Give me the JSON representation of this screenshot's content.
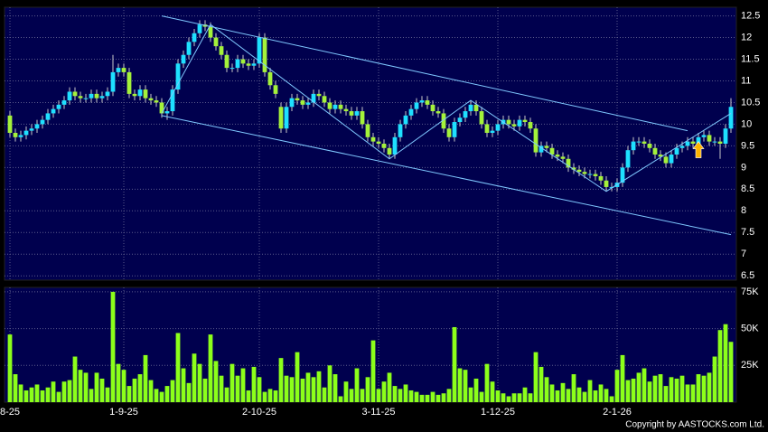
{
  "chart_data": [
    {
      "type": "candlestick",
      "up_color": "#1ee0ff",
      "down_color": "#a4f23a",
      "background": "#00004e",
      "grid": true,
      "xlim": [
        -1,
        134
      ],
      "xticks": [
        {
          "value": 0,
          "label": "8-25"
        },
        {
          "value": 21,
          "label": "1-9-25"
        },
        {
          "value": 46,
          "label": "2-10-25"
        },
        {
          "value": 68,
          "label": "3-11-25"
        },
        {
          "value": 90,
          "label": "1-12-25"
        },
        {
          "value": 112,
          "label": "2-1-26"
        }
      ],
      "ylim": [
        6.4,
        12.7
      ],
      "yticks": [
        6.5,
        7,
        7.5,
        8,
        8.5,
        9,
        9.5,
        10,
        10.5,
        11,
        11.5,
        12,
        12.5
      ],
      "open": [
        10.2,
        9.8,
        9.7,
        9.75,
        9.85,
        9.9,
        10.0,
        10.1,
        10.25,
        10.35,
        10.45,
        10.55,
        10.75,
        10.65,
        10.6,
        10.6,
        10.7,
        10.6,
        10.65,
        10.75,
        11.2,
        11.3,
        11.2,
        10.7,
        10.65,
        10.8,
        10.6,
        10.55,
        10.5,
        10.25,
        10.3,
        10.8,
        11.4,
        11.6,
        11.9,
        12.1,
        12.3,
        12.25,
        12.0,
        11.8,
        11.6,
        11.3,
        11.3,
        11.5,
        11.4,
        11.35,
        11.4,
        12.0,
        11.2,
        10.9,
        10.4,
        9.9,
        10.4,
        10.6,
        10.55,
        10.45,
        10.5,
        10.7,
        10.65,
        10.5,
        10.35,
        10.45,
        10.35,
        10.3,
        10.2,
        10.3,
        10.0,
        9.7,
        9.6,
        9.55,
        9.45,
        9.3,
        9.7,
        10.0,
        10.2,
        10.35,
        10.5,
        10.55,
        10.45,
        10.3,
        10.25,
        9.9,
        9.7,
        10.05,
        10.15,
        10.3,
        10.45,
        10.3,
        10.0,
        9.8,
        9.85,
        10.0,
        10.1,
        10.0,
        9.95,
        10.1,
        10.05,
        9.9,
        9.35,
        9.5,
        9.45,
        9.3,
        9.25,
        9.2,
        9.0,
        8.95,
        8.9,
        8.85,
        8.85,
        8.8,
        8.7,
        8.55,
        8.55,
        8.65,
        9.0,
        9.4,
        9.6,
        9.6,
        9.55,
        9.45,
        9.3,
        9.25,
        9.1,
        9.3,
        9.45,
        9.5,
        9.6,
        9.55,
        9.7,
        9.75,
        9.6,
        9.6,
        9.55,
        9.9
      ],
      "high": [
        10.3,
        9.9,
        9.85,
        9.95,
        10.0,
        10.1,
        10.2,
        10.35,
        10.45,
        10.55,
        10.65,
        10.85,
        10.85,
        10.75,
        10.7,
        10.8,
        10.8,
        10.75,
        10.85,
        11.6,
        11.4,
        11.4,
        11.3,
        10.8,
        10.9,
        10.9,
        10.7,
        10.65,
        10.6,
        10.4,
        10.9,
        11.5,
        11.7,
        12.0,
        12.2,
        12.4,
        12.4,
        12.35,
        12.1,
        11.9,
        11.7,
        11.4,
        11.6,
        11.6,
        11.5,
        11.5,
        12.1,
        12.1,
        11.3,
        11.0,
        10.5,
        10.5,
        10.7,
        10.7,
        10.65,
        10.6,
        10.8,
        10.8,
        10.75,
        10.6,
        10.55,
        10.55,
        10.45,
        10.4,
        10.4,
        10.4,
        10.1,
        9.8,
        9.7,
        9.65,
        9.55,
        9.8,
        10.1,
        10.3,
        10.45,
        10.6,
        10.65,
        10.65,
        10.55,
        10.4,
        10.35,
        10.0,
        10.15,
        10.25,
        10.4,
        10.55,
        10.55,
        10.4,
        10.1,
        9.95,
        10.1,
        10.2,
        10.2,
        10.1,
        10.2,
        10.2,
        10.15,
        10.0,
        9.6,
        9.6,
        9.55,
        9.4,
        9.35,
        9.3,
        9.1,
        9.05,
        9.0,
        8.95,
        8.95,
        8.9,
        8.8,
        8.65,
        8.75,
        9.1,
        9.5,
        9.7,
        9.7,
        9.7,
        9.65,
        9.55,
        9.4,
        9.35,
        9.4,
        9.55,
        9.6,
        9.7,
        9.7,
        9.8,
        9.85,
        9.85,
        9.7,
        9.7,
        10.0,
        10.6
      ],
      "low": [
        9.7,
        9.6,
        9.6,
        9.65,
        9.75,
        9.8,
        9.9,
        10.0,
        10.15,
        10.25,
        10.35,
        10.45,
        10.55,
        10.5,
        10.5,
        10.5,
        10.5,
        10.5,
        10.55,
        10.65,
        11.1,
        11.1,
        10.6,
        10.55,
        10.55,
        10.5,
        10.45,
        10.4,
        10.15,
        10.1,
        10.2,
        10.7,
        11.3,
        11.5,
        11.8,
        12.0,
        12.15,
        11.9,
        11.7,
        11.5,
        11.2,
        11.2,
        11.2,
        11.3,
        11.25,
        11.25,
        11.3,
        11.1,
        10.8,
        10.6,
        9.8,
        9.8,
        10.3,
        10.45,
        10.35,
        10.35,
        10.4,
        10.55,
        10.4,
        10.25,
        10.25,
        10.25,
        10.2,
        10.1,
        10.1,
        9.9,
        9.6,
        9.5,
        9.45,
        9.35,
        9.2,
        9.2,
        9.6,
        9.9,
        10.1,
        10.25,
        10.4,
        10.35,
        10.2,
        10.15,
        9.8,
        9.6,
        9.6,
        9.95,
        10.05,
        10.2,
        10.2,
        9.9,
        9.7,
        9.7,
        9.75,
        9.9,
        9.9,
        9.85,
        9.85,
        9.95,
        9.8,
        9.25,
        9.25,
        9.35,
        9.2,
        9.15,
        9.1,
        8.9,
        8.85,
        8.8,
        8.75,
        8.75,
        8.7,
        8.6,
        8.45,
        8.45,
        8.45,
        8.55,
        8.9,
        9.3,
        9.5,
        9.45,
        9.35,
        9.2,
        9.15,
        9.0,
        9.0,
        9.2,
        9.35,
        9.4,
        9.45,
        9.45,
        9.6,
        9.5,
        9.5,
        9.2,
        9.45,
        9.8
      ],
      "close": [
        9.8,
        9.7,
        9.75,
        9.85,
        9.9,
        10.0,
        10.1,
        10.25,
        10.35,
        10.45,
        10.55,
        10.75,
        10.65,
        10.6,
        10.6,
        10.7,
        10.6,
        10.65,
        10.75,
        11.2,
        11.3,
        11.2,
        10.7,
        10.65,
        10.8,
        10.6,
        10.55,
        10.5,
        10.25,
        10.3,
        10.8,
        11.4,
        11.6,
        11.9,
        12.1,
        12.3,
        12.25,
        12.0,
        11.8,
        11.6,
        11.3,
        11.3,
        11.5,
        11.4,
        11.35,
        11.4,
        12.0,
        11.2,
        10.9,
        10.7,
        9.9,
        10.4,
        10.6,
        10.55,
        10.45,
        10.5,
        10.7,
        10.65,
        10.5,
        10.35,
        10.45,
        10.35,
        10.3,
        10.2,
        10.3,
        10.0,
        9.7,
        9.6,
        9.55,
        9.45,
        9.3,
        9.7,
        10.0,
        10.2,
        10.35,
        10.5,
        10.55,
        10.45,
        10.3,
        10.25,
        9.9,
        9.7,
        10.05,
        10.15,
        10.3,
        10.45,
        10.3,
        10.0,
        9.8,
        9.85,
        10.0,
        10.1,
        10.0,
        9.95,
        10.1,
        10.05,
        9.9,
        9.35,
        9.5,
        9.45,
        9.3,
        9.25,
        9.2,
        9.0,
        8.95,
        8.9,
        8.85,
        8.85,
        8.8,
        8.7,
        8.55,
        8.55,
        8.65,
        9.0,
        9.4,
        9.6,
        9.6,
        9.55,
        9.45,
        9.3,
        9.25,
        9.1,
        9.3,
        9.45,
        9.5,
        9.6,
        9.55,
        9.7,
        9.75,
        9.6,
        9.6,
        9.55,
        9.9,
        10.4
      ],
      "trendlines": {
        "color": "#7fc8ff",
        "lines": [
          [
            [
              28,
              12.5
            ],
            [
              125,
              9.85
            ]
          ],
          [
            [
              28,
              10.2
            ],
            [
              133,
              7.45
            ]
          ],
          [
            [
              28,
              10.25
            ],
            [
              37,
              12.3
            ],
            [
              70,
              9.2
            ],
            [
              85,
              10.55
            ],
            [
              110,
              8.45
            ],
            [
              133,
              10.25
            ]
          ]
        ]
      },
      "markers": [
        {
          "x": 127,
          "y": 9.6,
          "color": "#ffb400"
        }
      ]
    },
    {
      "type": "volume",
      "color": "#8cff1a",
      "background": "#00004e",
      "grid": true,
      "xlim": [
        -1,
        134
      ],
      "xticks": [
        {
          "value": 0,
          "label": "8-25"
        },
        {
          "value": 21,
          "label": "1-9-25"
        },
        {
          "value": 46,
          "label": "2-10-25"
        },
        {
          "value": 68,
          "label": "3-11-25"
        },
        {
          "value": 90,
          "label": "1-12-25"
        },
        {
          "value": 112,
          "label": "2-1-26"
        }
      ],
      "ylim": [
        0,
        78000
      ],
      "yticks": [
        {
          "value": 25000,
          "label": "25K"
        },
        {
          "value": 50000,
          "label": "50K"
        },
        {
          "value": 75000,
          "label": "75K"
        }
      ],
      "values": [
        46000,
        19000,
        12000,
        8000,
        10000,
        12000,
        8000,
        10000,
        14000,
        7000,
        14000,
        15000,
        31000,
        22000,
        20000,
        9000,
        20000,
        16000,
        10000,
        75000,
        26000,
        22000,
        11000,
        16000,
        19000,
        32000,
        15000,
        9000,
        7000,
        11000,
        15000,
        47000,
        23000,
        13000,
        33000,
        26000,
        16000,
        46000,
        28000,
        18000,
        10000,
        26000,
        18000,
        23000,
        8000,
        24000,
        17000,
        7000,
        9000,
        8000,
        30000,
        18000,
        17000,
        34000,
        16000,
        20000,
        17000,
        21000,
        10000,
        25000,
        19000,
        4000,
        14000,
        9000,
        23000,
        9000,
        17000,
        42000,
        9000,
        14000,
        20000,
        11000,
        9000,
        12000,
        8000,
        7000,
        5000,
        5000,
        7000,
        5000,
        6000,
        9000,
        51000,
        23000,
        22000,
        10000,
        16000,
        7000,
        26000,
        14000,
        8000,
        6000,
        4000,
        6000,
        6000,
        10000,
        6000,
        34000,
        24000,
        17000,
        12000,
        8000,
        13000,
        9000,
        19000,
        10000,
        7000,
        15000,
        8000,
        12000,
        9000,
        4000,
        22000,
        32000,
        15000,
        16000,
        20000,
        23000,
        14000,
        18000,
        19000,
        11000,
        17000,
        16000,
        18000,
        12000,
        12000,
        19000,
        18000,
        20000,
        31000,
        49000,
        53000,
        41000
      ]
    }
  ],
  "footer": "Copyright by AASTOCKS.com Ltd."
}
